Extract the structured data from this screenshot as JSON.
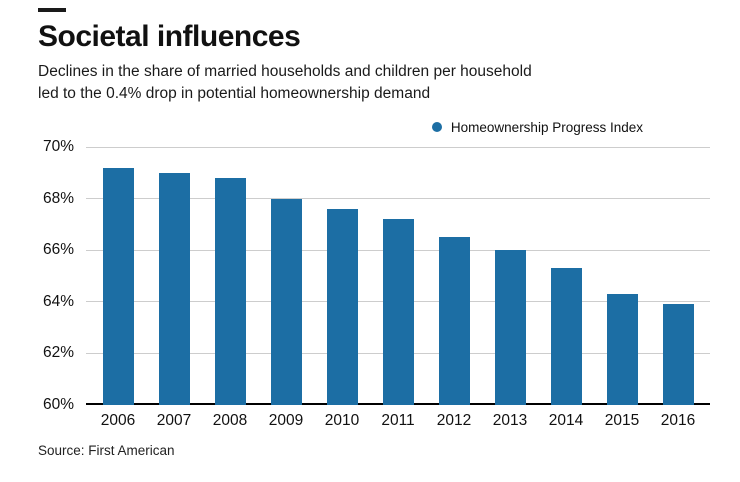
{
  "header": {
    "title": "Societal influences",
    "subtitle_lines": [
      "Declines in the share of married households and children per household",
      "led to the 0.4% drop in potential homeownership demand"
    ]
  },
  "legend": {
    "label": "Homeownership Progress Index",
    "marker_color": "#1c6ea4"
  },
  "chart_data": {
    "type": "bar",
    "title": "Societal influences",
    "series_name": "Homeownership Progress Index",
    "categories": [
      "2006",
      "2007",
      "2008",
      "2009",
      "2010",
      "2011",
      "2012",
      "2013",
      "2014",
      "2015",
      "2016"
    ],
    "values": [
      69.2,
      69.0,
      68.8,
      68.0,
      67.6,
      67.2,
      66.5,
      66.0,
      65.3,
      64.3,
      63.9
    ],
    "xlabel": "",
    "ylabel": "",
    "ylim": [
      60,
      70
    ],
    "yticks": [
      70,
      68,
      66,
      64,
      62,
      60
    ],
    "ytick_suffix": "%",
    "grid": true,
    "legend_position": "top-right",
    "bar_color": "#1c6ea4",
    "value_unit": "%"
  },
  "footer": {
    "source": "Source: First American"
  }
}
